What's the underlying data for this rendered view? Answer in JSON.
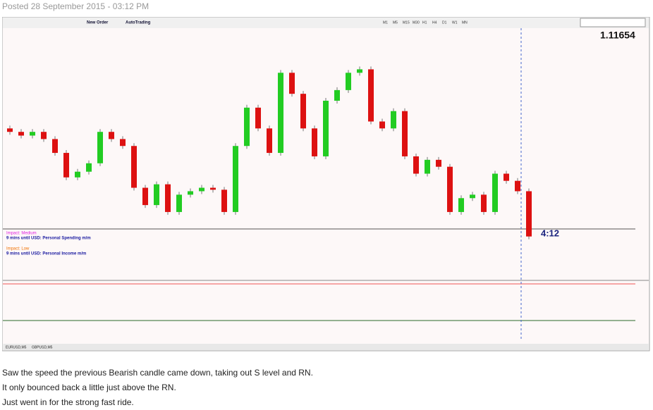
{
  "post": {
    "posted": "Posted 28 September 2015 - 03:12 PM"
  },
  "chart": {
    "toolbar": {
      "new_order": "New Order",
      "auto_trading": "AutoTrading",
      "timeframes": [
        "M1",
        "M5",
        "M15",
        "M30",
        "H1",
        "H4",
        "D1",
        "W1",
        "MN"
      ]
    },
    "price": "1.11654",
    "timer": "4:12",
    "news": [
      {
        "impact": "Impact: Medium",
        "event": "9 mins until USD: Personal Spending m/m"
      },
      {
        "impact": "Impact: Low",
        "event": "9 mins until USD: Personal Income m/m"
      }
    ],
    "candles": {
      "ylim": [
        0,
        100
      ],
      "open": [
        60.6,
        59.2,
        57.7,
        59.2,
        56.3,
        50.7,
        40.8,
        43.1,
        46.5,
        59.2,
        56.3,
        53.5,
        36.6,
        29.6,
        38.0,
        26.8,
        33.8,
        35.2,
        36.6,
        35.8,
        26.8,
        53.5,
        69.0,
        60.6,
        50.7,
        83.1,
        74.6,
        60.6,
        49.3,
        71.8,
        76.1,
        83.1,
        84.5,
        63.4,
        60.6,
        67.6,
        49.3,
        42.3,
        47.9,
        45.1,
        26.8,
        32.4,
        33.8,
        26.8,
        42.3,
        39.4,
        35.2
      ],
      "close": [
        59.2,
        57.7,
        59.2,
        56.3,
        50.7,
        40.8,
        43.1,
        46.5,
        59.2,
        56.3,
        53.5,
        36.6,
        29.6,
        38.0,
        26.8,
        33.8,
        35.2,
        36.6,
        35.8,
        26.8,
        53.5,
        69.0,
        60.6,
        50.7,
        83.1,
        74.6,
        60.6,
        49.3,
        71.8,
        76.1,
        83.1,
        84.5,
        63.4,
        60.6,
        67.6,
        49.3,
        42.3,
        47.9,
        45.1,
        26.8,
        32.4,
        33.8,
        26.8,
        42.3,
        39.4,
        35.2,
        16.9
      ]
    },
    "tabs": [
      "EURUSD,M5",
      "GBPUSD,M5"
    ]
  },
  "body": [
    "Saw the speed the previous Bearish candle came down, taking out S level and RN.",
    "It only bounced back a little just above the RN.",
    "Just went in for the strong fast ride."
  ]
}
